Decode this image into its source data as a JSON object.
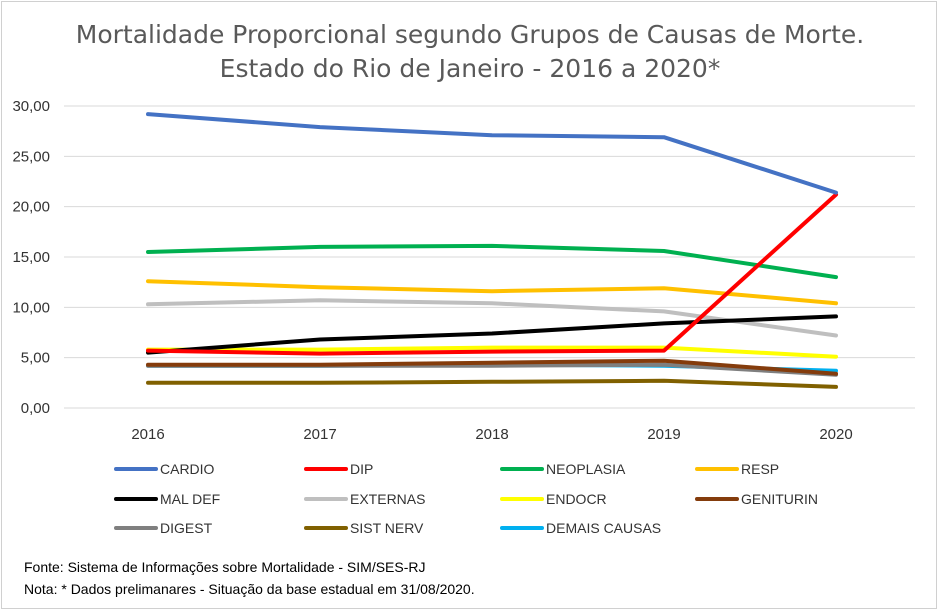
{
  "chart_data": {
    "type": "line",
    "title": "Mortalidade Proporcional segundo Grupos de Causas de Morte.",
    "subtitle": "Estado do Rio de Janeiro - 2016 a 2020*",
    "xlabel": "",
    "ylabel": "",
    "ylim": [
      0,
      30
    ],
    "yticks": [
      "0,00",
      "5,00",
      "10,00",
      "15,00",
      "20,00",
      "25,00",
      "30,00"
    ],
    "x": [
      "2016",
      "2017",
      "2018",
      "2019",
      "2020"
    ],
    "grid": true,
    "legend": "bottom",
    "series": [
      {
        "name": "CARDIO",
        "color": "#4472C4",
        "values": [
          29.2,
          27.9,
          27.1,
          26.9,
          21.4
        ]
      },
      {
        "name": "DIP",
        "color": "#FF0000",
        "values": [
          5.7,
          5.4,
          5.6,
          5.7,
          21.2
        ]
      },
      {
        "name": "NEOPLASIA",
        "color": "#00B050",
        "values": [
          15.5,
          16.0,
          16.1,
          15.6,
          13.0
        ]
      },
      {
        "name": "RESP",
        "color": "#FFC000",
        "values": [
          12.6,
          12.0,
          11.6,
          11.9,
          10.4
        ]
      },
      {
        "name": "MAL DEF",
        "color": "#000000",
        "values": [
          5.5,
          6.8,
          7.4,
          8.4,
          9.1
        ]
      },
      {
        "name": "EXTERNAS",
        "color": "#BFBFBF",
        "values": [
          10.3,
          10.7,
          10.4,
          9.6,
          7.2
        ]
      },
      {
        "name": "ENDOCR",
        "color": "#FFFF00",
        "values": [
          5.8,
          5.8,
          6.0,
          6.0,
          5.1
        ]
      },
      {
        "name": "GENITURIN",
        "color": "#843C0C",
        "values": [
          4.3,
          4.3,
          4.5,
          4.7,
          3.4
        ]
      },
      {
        "name": "DIGEST",
        "color": "#7F7F7F",
        "values": [
          4.2,
          4.2,
          4.2,
          4.3,
          3.3
        ]
      },
      {
        "name": "SIST NERV",
        "color": "#806000",
        "values": [
          2.5,
          2.5,
          2.6,
          2.7,
          2.1
        ]
      },
      {
        "name": "DEMAIS CAUSAS",
        "color": "#00B0F0",
        "values": [
          4.2,
          4.2,
          4.3,
          4.2,
          3.7
        ]
      }
    ]
  },
  "notes": {
    "source": "Fonte:  Sistema de Informações sobre Mortalidade - SIM/SES-RJ",
    "note": "Nota: * Dados prelimanares - Situação da base estadual em 31/08/2020."
  }
}
